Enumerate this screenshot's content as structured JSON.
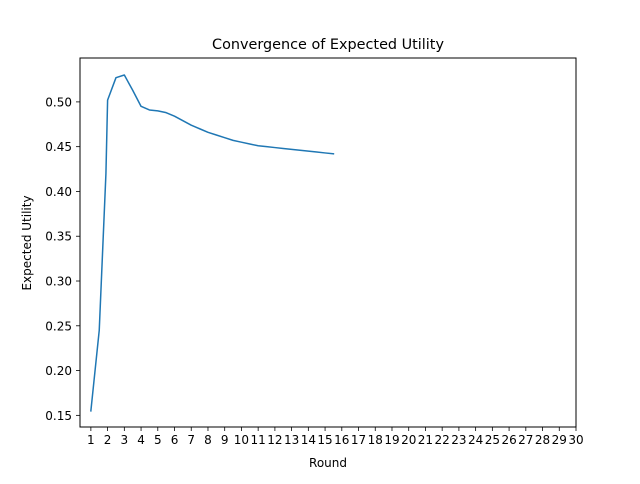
{
  "chart_data": {
    "type": "line",
    "title": "Convergence of Expected Utility",
    "xlabel": "Round",
    "ylabel": "Expected Utility",
    "xlim": [
      0.35,
      30.0
    ],
    "ylim": [
      0.137,
      0.549
    ],
    "xticks": [
      1,
      2,
      3,
      4,
      5,
      6,
      7,
      8,
      9,
      10,
      11,
      12,
      13,
      14,
      15,
      16,
      17,
      18,
      19,
      20,
      21,
      22,
      23,
      24,
      25,
      26,
      27,
      28,
      29,
      30
    ],
    "yticks": [
      0.15,
      0.2,
      0.25,
      0.3,
      0.35,
      0.4,
      0.45,
      0.5
    ],
    "ytick_labels": [
      "0.15",
      "0.20",
      "0.25",
      "0.30",
      "0.35",
      "0.40",
      "0.45",
      "0.50"
    ],
    "grid": false,
    "legend": "none",
    "series": [
      {
        "color": "#1f77b4",
        "x": [
          1,
          1.5,
          1.9,
          2.0,
          2.5,
          3.0,
          3.5,
          4.0,
          4.5,
          5.0,
          5.5,
          6.0,
          6.5,
          7.0,
          7.5,
          8.0,
          8.5,
          9.0,
          9.5,
          10.0,
          10.5,
          11.0,
          11.5,
          12.0,
          12.5,
          13.0,
          13.5,
          14.0,
          14.5,
          15.0,
          15.5
        ],
        "y": [
          0.155,
          0.245,
          0.42,
          0.502,
          0.527,
          0.53,
          0.513,
          0.495,
          0.491,
          0.49,
          0.488,
          0.484,
          0.479,
          0.474,
          0.47,
          0.466,
          0.463,
          0.46,
          0.457,
          0.455,
          0.453,
          0.451,
          0.45,
          0.449,
          0.448,
          0.447,
          0.446,
          0.445,
          0.444,
          0.443,
          0.442
        ]
      }
    ]
  }
}
